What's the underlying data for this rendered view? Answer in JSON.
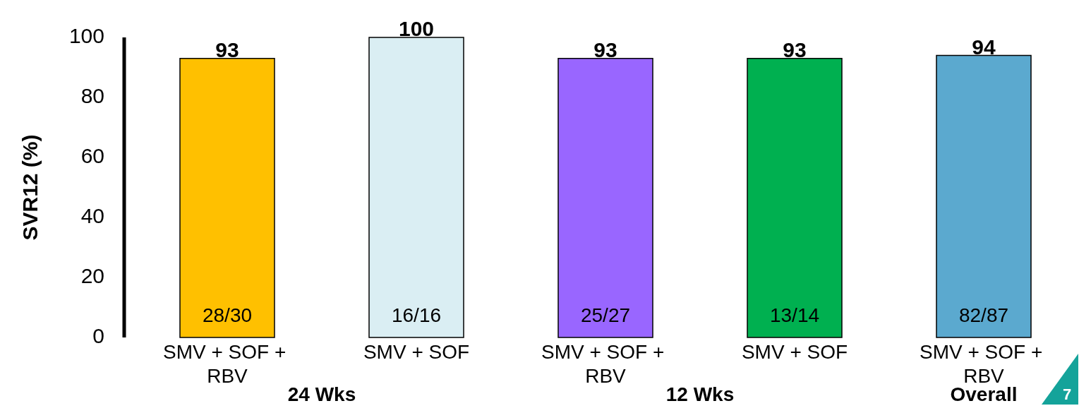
{
  "chart_data": {
    "type": "bar",
    "ylabel": "SVR12 (%)",
    "categories": [
      "SMV + SOF + RBV",
      "SMV + SOF",
      "SMV + SOF + RBV",
      "SMV + SOF",
      "SMV + SOF + RBV"
    ],
    "values": [
      93,
      100,
      93,
      93,
      94
    ],
    "colors": [
      "#ffc000",
      "#daeef3",
      "#9966ff",
      "#00b050",
      "#5ba9cf"
    ],
    "ylim": [
      0,
      100
    ],
    "yticks": [
      0,
      20,
      40,
      60,
      80,
      100
    ],
    "data_labels": true,
    "grid": false,
    "annotations": [
      "28/30",
      "16/16",
      "25/27",
      "13/14",
      "82/87",
      "24 Wks",
      "12 Wks",
      "Overall",
      "7"
    ]
  }
}
